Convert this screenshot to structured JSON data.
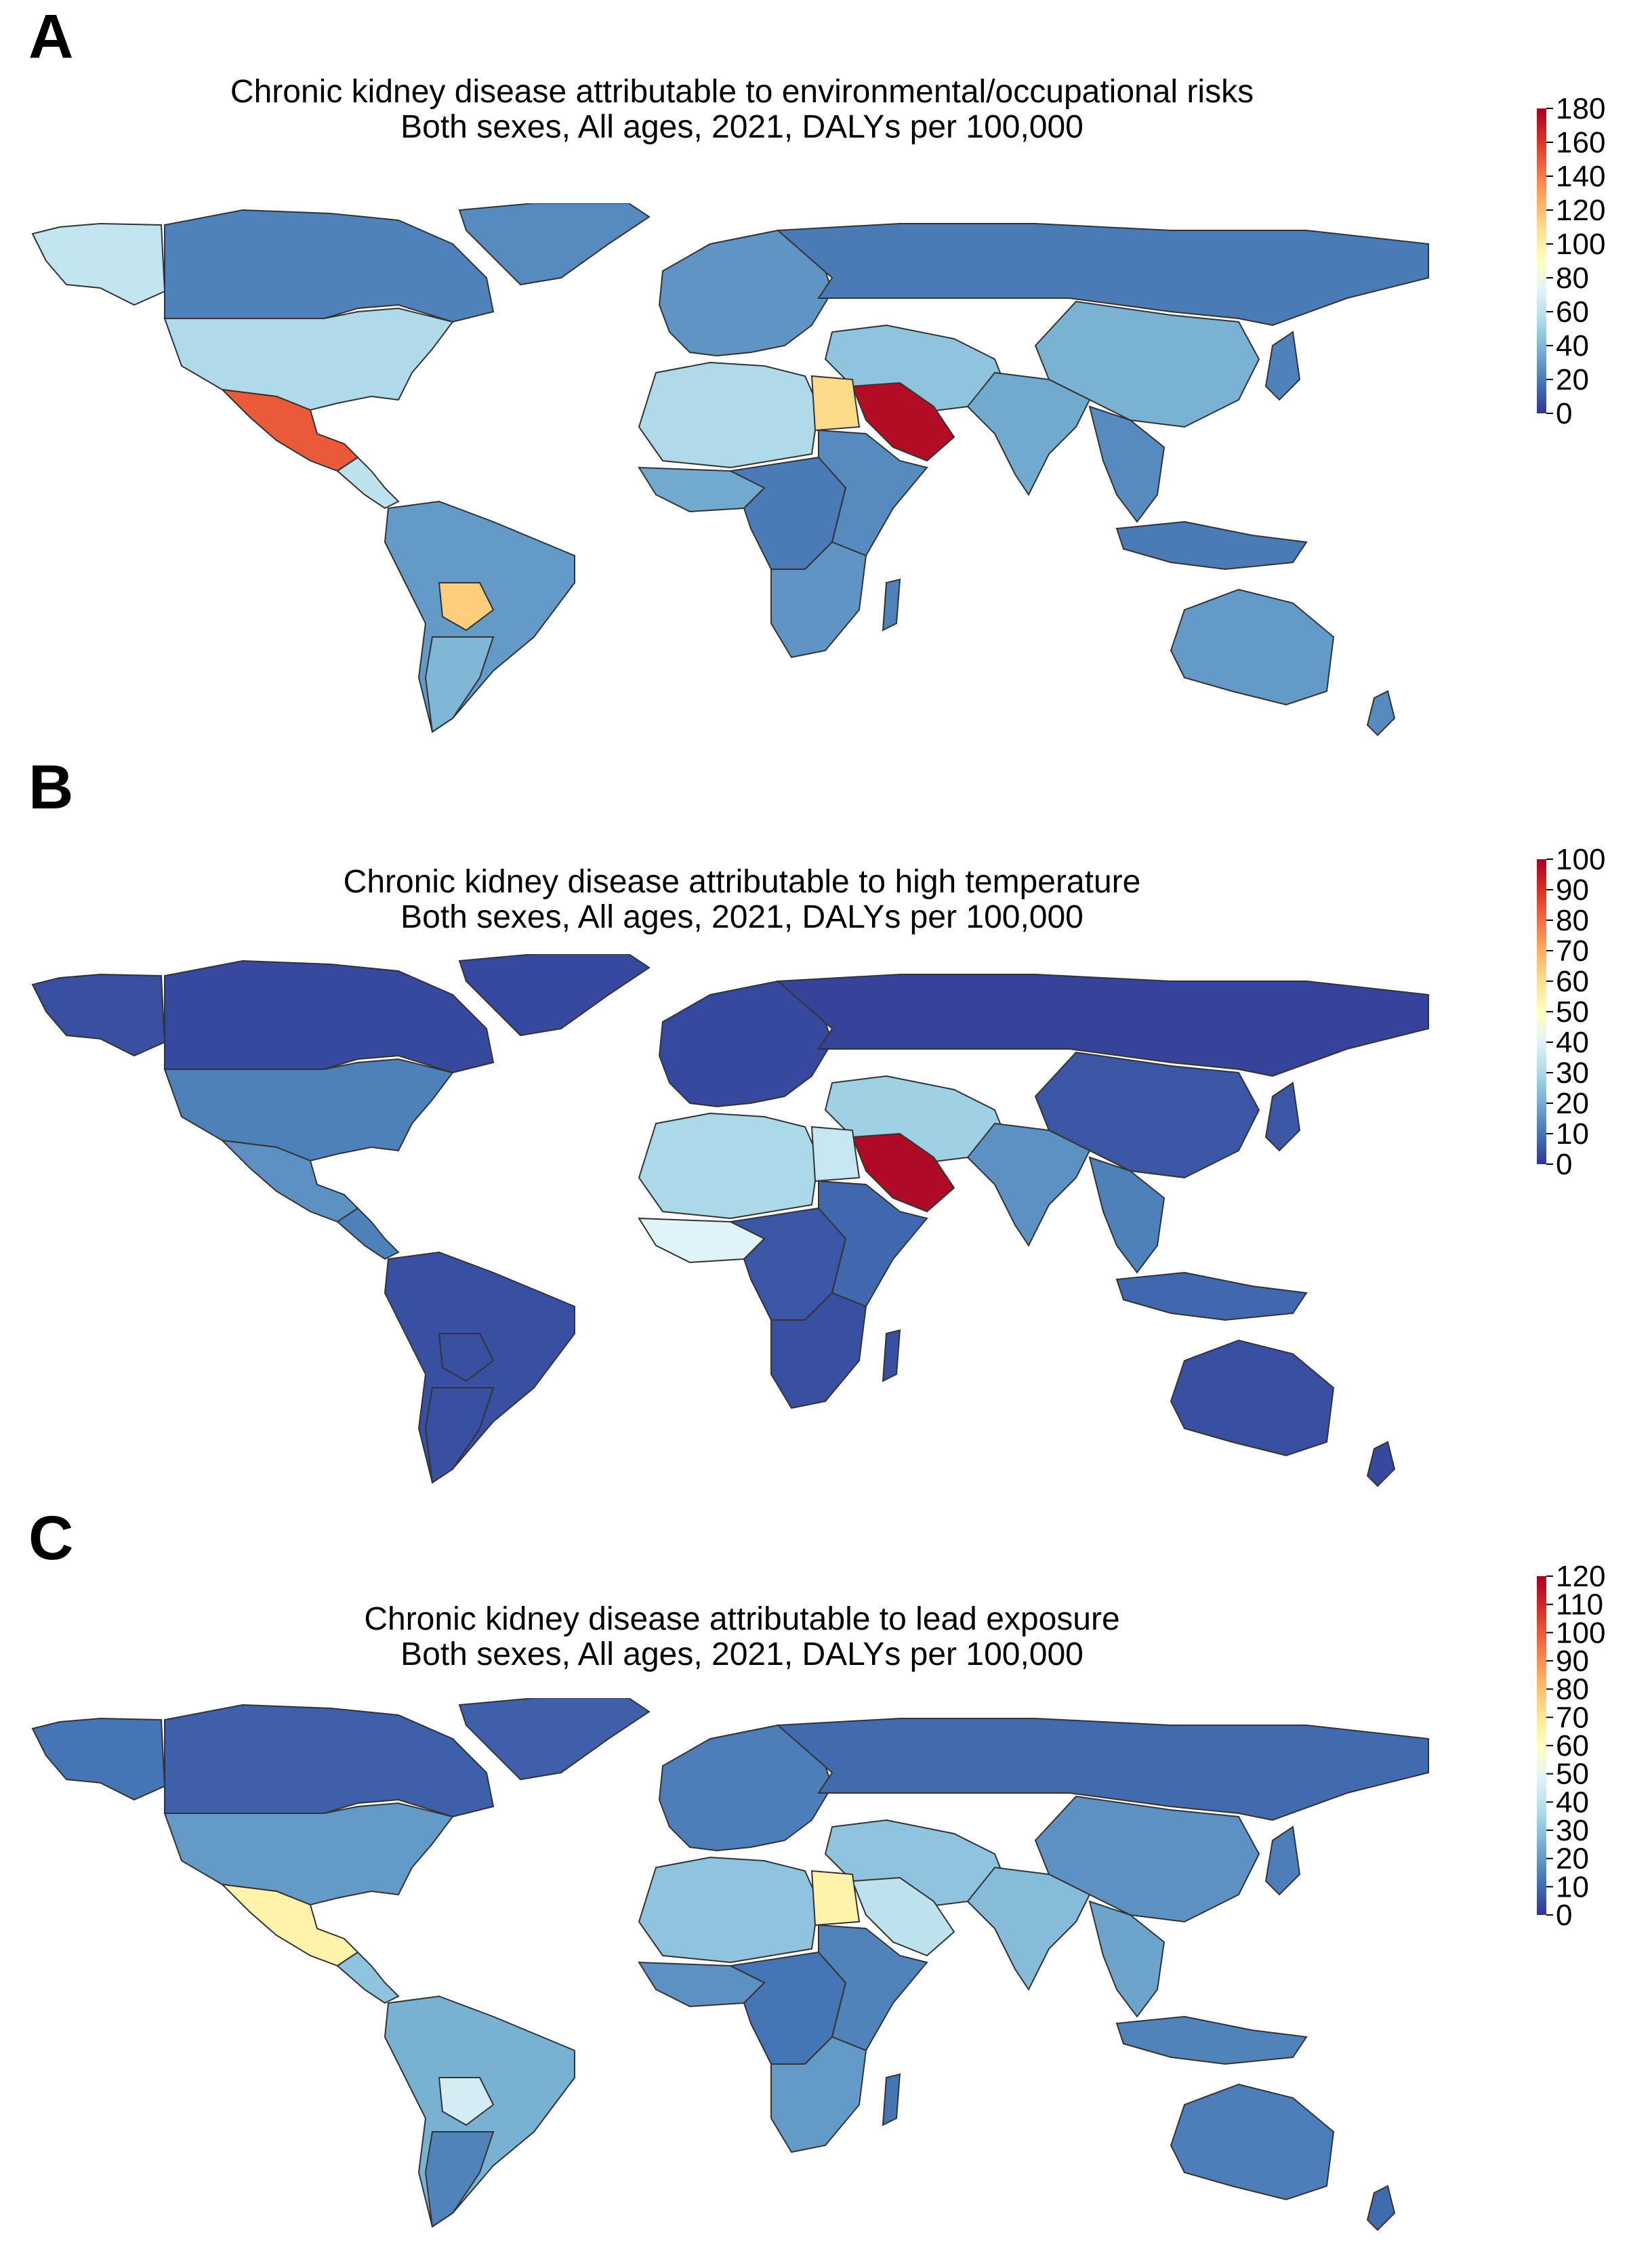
{
  "panels": [
    {
      "letter": "A",
      "title_line1": "Chronic kidney disease attributable to environmental/occupational risks",
      "title_line2": "Both sexes, All ages, 2021, DALYs per 100,000",
      "legend_ticks": [
        "180",
        "160",
        "140",
        "120",
        "100",
        "80",
        "60",
        "40",
        "20",
        "0"
      ],
      "legend_min": 0,
      "legend_max": 180,
      "region_values": {
        "canada": 22,
        "usa": 55,
        "mexico": 150,
        "central-america": 60,
        "alaska": 62,
        "greenland": 25,
        "south-america": 30,
        "bolivia": 115,
        "argentina": 40,
        "europe": 28,
        "russia": 20,
        "north-africa": 55,
        "egypt": 110,
        "saudi-arabia": 175,
        "west-africa": 35,
        "central-africa": 20,
        "east-africa": 25,
        "southern-africa": 28,
        "madagascar": 22,
        "middle-east": 45,
        "india": 35,
        "china": 38,
        "southeast-asia": 25,
        "japan": 22,
        "indonesia": 20,
        "australia": 30,
        "new-zealand": 25
      }
    },
    {
      "letter": "B",
      "title_line1": "Chronic kidney disease attributable to high temperature",
      "title_line2": "Both sexes, All ages, 2021, DALYs per 100,000",
      "legend_ticks": [
        "100",
        "90",
        "80",
        "70",
        "60",
        "50",
        "40",
        "30",
        "20",
        "10",
        "0"
      ],
      "legend_min": 0,
      "legend_max": 100,
      "region_values": {
        "canada": 3,
        "usa": 12,
        "mexico": 15,
        "central-america": 12,
        "alaska": 4,
        "greenland": 3,
        "south-america": 4,
        "bolivia": 4,
        "argentina": 4,
        "europe": 3,
        "russia": 2,
        "north-africa": 30,
        "egypt": 35,
        "saudi-arabia": 98,
        "west-africa": 40,
        "central-africa": 5,
        "east-africa": 8,
        "southern-africa": 4,
        "madagascar": 4,
        "middle-east": 28,
        "india": 15,
        "china": 5,
        "southeast-asia": 12,
        "japan": 5,
        "indonesia": 8,
        "australia": 4,
        "new-zealand": 3
      }
    },
    {
      "letter": "C",
      "title_line1": "Chronic kidney disease attributable to lead exposure",
      "title_line2": "Both sexes, All ages, 2021, DALYs per 100,000",
      "legend_ticks": [
        "120",
        "110",
        "100",
        "90",
        "80",
        "70",
        "60",
        "50",
        "40",
        "30",
        "20",
        "10",
        "0"
      ],
      "legend_min": 0,
      "legend_max": 120,
      "region_values": {
        "canada": 8,
        "usa": 20,
        "mexico": 65,
        "central-america": 30,
        "alaska": 12,
        "greenland": 8,
        "south-america": 25,
        "bolivia": 45,
        "argentina": 15,
        "europe": 14,
        "russia": 10,
        "north-africa": 30,
        "egypt": 65,
        "saudi-arabia": 40,
        "west-africa": 18,
        "central-africa": 12,
        "east-africa": 15,
        "southern-africa": 20,
        "madagascar": 12,
        "middle-east": 30,
        "india": 28,
        "china": 18,
        "southeast-asia": 22,
        "japan": 14,
        "indonesia": 15,
        "australia": 14,
        "new-zealand": 10
      }
    }
  ],
  "colorscale": [
    "#313695",
    "#4575b4",
    "#74add1",
    "#abd9e9",
    "#e0f3f8",
    "#ffffbf",
    "#fee090",
    "#fdae61",
    "#f46d43",
    "#d73027",
    "#a50026"
  ]
}
